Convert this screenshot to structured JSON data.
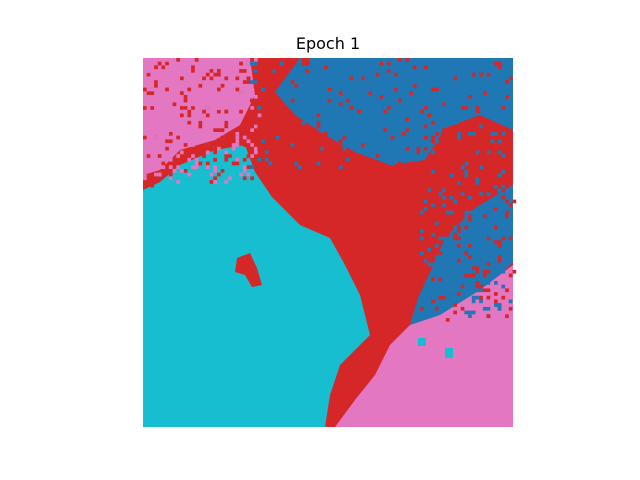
{
  "title": "Epoch 1"
}
